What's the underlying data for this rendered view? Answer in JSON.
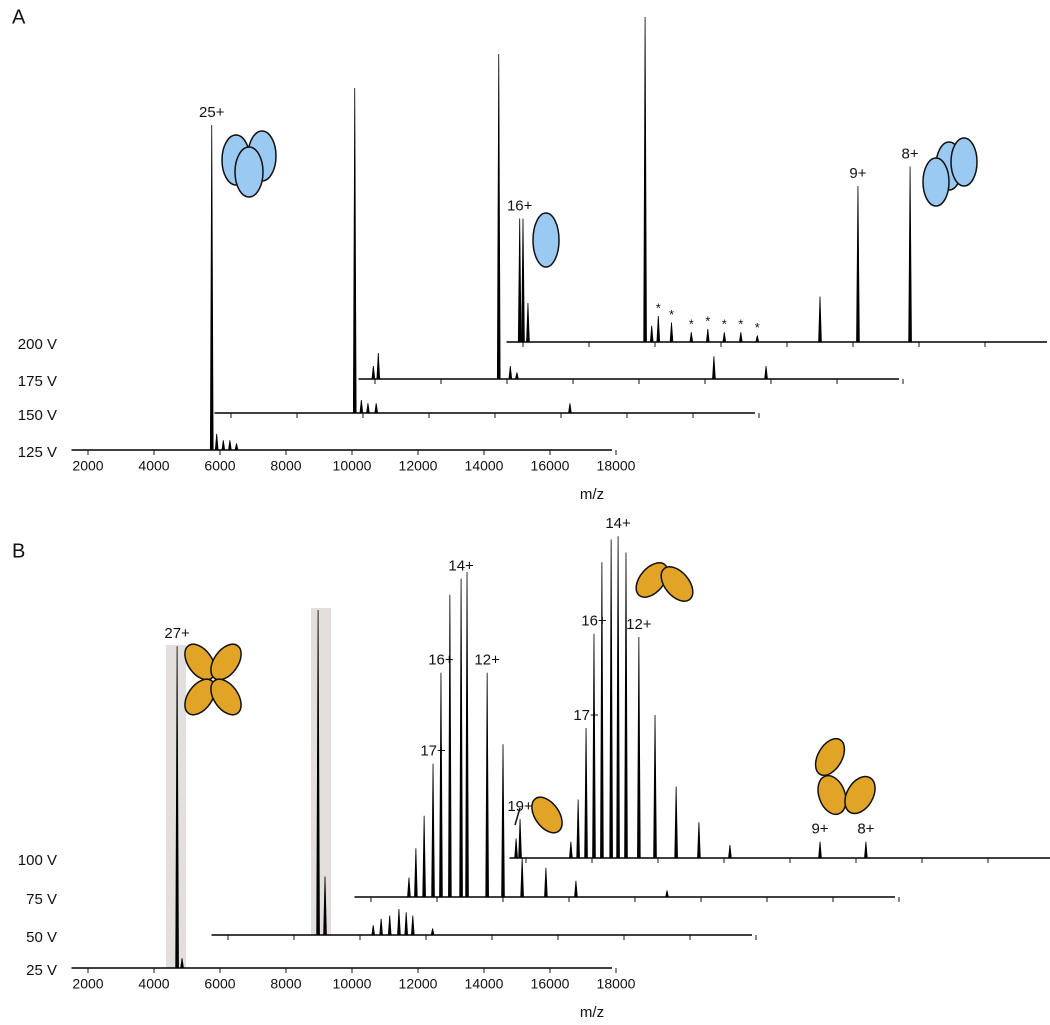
{
  "chart_data": [
    {
      "type": "stick",
      "title": "A",
      "x_label": "m/z",
      "xlim": [
        1500,
        18000
      ],
      "xticks": [
        2000,
        4000,
        6000,
        8000,
        10000,
        12000,
        14000,
        16000,
        18000
      ],
      "ylim": [
        0,
        100
      ],
      "series": [
        {
          "name": "125 V",
          "color": "#000000",
          "x": [
            5750,
            5900,
            6100,
            6300,
            6500
          ],
          "values": [
            100,
            5,
            3,
            3,
            2
          ],
          "peak_labels": [
            "25+",
            null,
            null,
            null,
            null
          ]
        },
        {
          "name": "150 V",
          "color": "#000000",
          "x": [
            5750,
            5950,
            6150,
            6400,
            12270
          ],
          "values": [
            100,
            4,
            3,
            3,
            3
          ],
          "peak_labels": [
            null,
            null,
            null,
            null,
            null
          ]
        },
        {
          "name": "175 V",
          "color": "#000000",
          "x": [
            1950,
            2100,
            5750,
            6100,
            6300,
            12270,
            13850
          ],
          "values": [
            4,
            8,
            100,
            4,
            2,
            7,
            4
          ],
          "peak_labels": [
            null,
            null,
            null,
            null,
            null,
            null,
            null
          ]
        },
        {
          "name": "200 V",
          "color": "#000000",
          "x": [
            1900,
            2000,
            2150,
            5700,
            5900,
            6100,
            6500,
            7100,
            7600,
            8100,
            8600,
            9100,
            11000,
            12150,
            13730
          ],
          "values": [
            38,
            38,
            12,
            100,
            5,
            8,
            6,
            3,
            4,
            3,
            3,
            2,
            14,
            48,
            54
          ],
          "peak_labels": [
            "16+",
            null,
            null,
            null,
            null,
            "*",
            "*",
            "*",
            "*",
            "*",
            "*",
            "*",
            null,
            "9+",
            "8+"
          ]
        }
      ]
    },
    {
      "type": "stick",
      "title": "B",
      "x_label": "m/z",
      "xlim": [
        1500,
        18000
      ],
      "xticks": [
        2000,
        4000,
        6000,
        8000,
        10000,
        12000,
        14000,
        16000,
        18000
      ],
      "ylim": [
        0,
        100
      ],
      "series": [
        {
          "name": "25 V",
          "color": "#000000",
          "x": [
            4700,
            4850
          ],
          "values": [
            99,
            3
          ],
          "peak_labels": [
            "27+",
            null
          ]
        },
        {
          "name": "50 V",
          "color": "#000000",
          "x": [
            4730,
            4940,
            6400,
            6640,
            6900,
            7180,
            7400,
            7600,
            8200
          ],
          "values": [
            100,
            18,
            3,
            5,
            6,
            8,
            7,
            6,
            2
          ],
          "peak_labels": [
            null,
            null,
            null,
            null,
            null,
            null,
            null,
            null,
            null
          ]
        },
        {
          "name": "75 V",
          "color": "#000000",
          "x": [
            3150,
            3360,
            3610,
            3880,
            4120,
            4390,
            4730,
            4910,
            5520,
            6000,
            6580,
            7300,
            8210,
            10970
          ],
          "values": [
            6,
            15,
            25,
            41,
            69,
            93,
            98,
            100,
            69,
            47,
            12,
            9,
            5,
            2
          ],
          "peak_labels": [
            null,
            null,
            null,
            "17+",
            "16+",
            null,
            "14+",
            null,
            "12+",
            null,
            null,
            null,
            null,
            null
          ]
        },
        {
          "name": "100 V",
          "color": "#000000",
          "x": [
            1700,
            1820,
            3360,
            3580,
            3820,
            4060,
            4300,
            4580,
            4790,
            5030,
            5420,
            5910,
            6550,
            7240,
            8180,
            10910,
            12300
          ],
          "values": [
            6,
            12,
            5,
            18,
            40,
            69,
            91,
            98,
            99,
            94,
            68,
            44,
            22,
            11,
            4,
            5,
            5
          ],
          "peak_labels": [
            null,
            "19+",
            null,
            null,
            "17+",
            "16+",
            null,
            null,
            "14+",
            null,
            "12+",
            null,
            null,
            null,
            null,
            "9+",
            "8+"
          ]
        }
      ]
    }
  ]
}
